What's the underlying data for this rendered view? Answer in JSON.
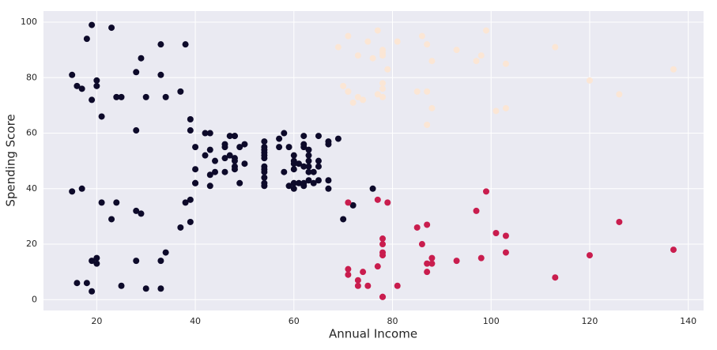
{
  "chart_data": {
    "type": "scatter",
    "xlabel": "Annual Income",
    "ylabel": "Spending Score",
    "xlim": [
      9.2,
      143.1
    ],
    "ylim": [
      -3.9,
      104
    ],
    "xticks": [
      20,
      40,
      60,
      80,
      100,
      120,
      140
    ],
    "yticks": [
      0,
      20,
      40,
      60,
      80,
      100
    ],
    "grid": true,
    "background": "#eaeaf2",
    "series": [
      {
        "color": "#0d0a2a",
        "x": [
          15,
          15,
          16,
          16,
          17,
          17,
          18,
          18,
          19,
          19,
          19,
          19,
          20,
          20,
          20,
          20,
          21,
          21,
          23,
          23,
          24,
          24,
          25,
          25,
          28,
          28,
          28,
          28,
          29,
          29,
          30,
          30,
          33,
          33,
          33,
          33,
          34,
          34,
          37,
          37,
          38,
          38,
          39,
          39,
          39,
          39,
          40,
          40,
          40,
          40,
          42,
          42,
          43,
          43,
          43,
          43,
          44,
          44,
          46,
          46,
          46,
          46,
          47,
          47,
          48,
          48,
          48,
          48,
          48,
          48,
          49,
          49,
          50,
          50,
          54,
          54,
          54,
          54,
          54,
          54,
          54,
          54,
          54,
          54,
          54,
          54,
          57,
          57,
          58,
          58,
          59,
          59,
          60,
          60,
          60,
          60,
          60,
          60,
          61,
          61,
          62,
          62,
          62,
          62,
          62,
          62,
          63,
          63,
          63,
          63,
          63,
          63,
          64,
          64,
          65,
          65,
          65,
          65,
          67,
          67,
          67,
          67,
          69,
          70,
          72,
          76
        ],
        "y": [
          39,
          81,
          6,
          77,
          40,
          76,
          6,
          94,
          3,
          72,
          14,
          99,
          15,
          77,
          13,
          79,
          35,
          66,
          29,
          98,
          35,
          73,
          5,
          73,
          14,
          82,
          32,
          61,
          31,
          87,
          4,
          73,
          4,
          92,
          14,
          81,
          17,
          73,
          26,
          75,
          35,
          92,
          36,
          61,
          28,
          65,
          55,
          47,
          42,
          42,
          52,
          60,
          54,
          60,
          45,
          41,
          50,
          46,
          51,
          46,
          56,
          55,
          52,
          59,
          51,
          59,
          50,
          48,
          59,
          47,
          55,
          42,
          49,
          56,
          47,
          54,
          53,
          48,
          52,
          42,
          51,
          55,
          41,
          44,
          57,
          46,
          58,
          55,
          60,
          46,
          55,
          41,
          49,
          40,
          42,
          52,
          47,
          50,
          42,
          49,
          41,
          48,
          59,
          55,
          56,
          42,
          50,
          46,
          43,
          48,
          52,
          54,
          42,
          46,
          48,
          50,
          43,
          59,
          43,
          57,
          56,
          40,
          58,
          29,
          34,
          40
        ]
      },
      {
        "color": "#c91d4e",
        "x": [
          71,
          71,
          71,
          73,
          73,
          74,
          75,
          77,
          77,
          78,
          78,
          78,
          78,
          78,
          78,
          79,
          81,
          85,
          86,
          87,
          87,
          87,
          88,
          88,
          93,
          97,
          98,
          99,
          101,
          103,
          103,
          113,
          120,
          126,
          137
        ],
        "y": [
          35,
          11,
          9,
          5,
          7,
          10,
          5,
          12,
          36,
          22,
          17,
          20,
          16,
          1,
          1,
          35,
          5,
          26,
          20,
          27,
          13,
          10,
          13,
          15,
          14,
          32,
          15,
          39,
          24,
          17,
          23,
          8,
          16,
          28,
          18
        ]
      },
      {
        "color": "#fbe6d5",
        "x": [
          69,
          70,
          71,
          71,
          71,
          72,
          73,
          73,
          74,
          75,
          76,
          77,
          77,
          78,
          78,
          78,
          78,
          78,
          78,
          79,
          81,
          85,
          86,
          87,
          87,
          87,
          88,
          88,
          93,
          97,
          98,
          99,
          101,
          103,
          103,
          113,
          120,
          126,
          137
        ],
        "y": [
          91,
          77,
          95,
          75,
          75,
          71,
          88,
          73,
          72,
          93,
          87,
          97,
          74,
          90,
          88,
          76,
          89,
          78,
          73,
          83,
          93,
          75,
          95,
          63,
          75,
          92,
          86,
          69,
          90,
          86,
          88,
          97,
          68,
          85,
          69,
          91,
          79,
          74,
          83
        ]
      }
    ]
  }
}
